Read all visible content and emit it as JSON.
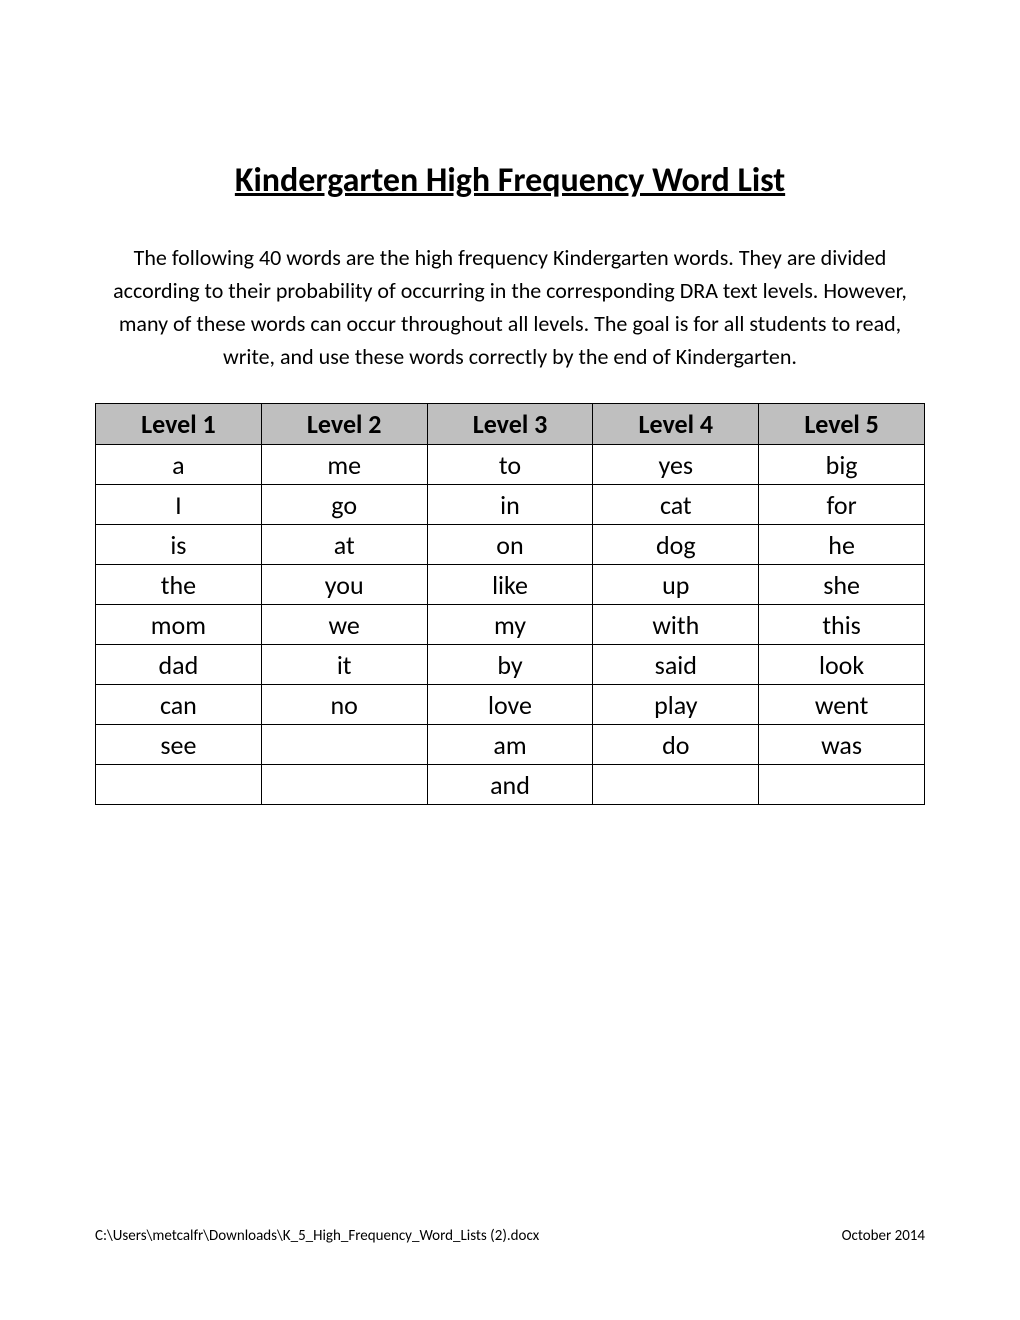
{
  "title": "Kindergarten High Frequency Word List",
  "intro": "The following 40 words are the high frequency Kindergarten words. They are divided according to their probability of occurring in the corresponding DRA text levels. However, many of these words can occur throughout all levels. The goal is for all students to read, write, and use these words correctly by the end of Kindergarten.",
  "table": {
    "columns": [
      "Level 1",
      "Level 2",
      "Level 3",
      "Level 4",
      "Level 5"
    ],
    "rows": [
      [
        "a",
        "me",
        "to",
        "yes",
        "big"
      ],
      [
        "I",
        "go",
        "in",
        "cat",
        "for"
      ],
      [
        "is",
        "at",
        "on",
        "dog",
        "he"
      ],
      [
        "the",
        "you",
        "like",
        "up",
        "she"
      ],
      [
        "mom",
        "we",
        "my",
        "with",
        "this"
      ],
      [
        "dad",
        "it",
        "by",
        "said",
        "look"
      ],
      [
        "can",
        "no",
        "love",
        "play",
        "went"
      ],
      [
        "see",
        "",
        "am",
        "do",
        "was"
      ],
      [
        "",
        "",
        "and",
        "",
        ""
      ]
    ],
    "header_bg": "#bfbfbf",
    "border_color": "#000000",
    "cell_fontsize": 26,
    "header_fontsize": 26
  },
  "footer": {
    "left": "C:\\Users\\metcalfr\\Downloads\\K_5_High_Frequency_Word_Lists (2).docx",
    "right": "October 2014"
  },
  "styling": {
    "page_bg": "#ffffff",
    "text_color": "#000000",
    "title_fontsize": 34,
    "intro_fontsize": 22,
    "footer_fontsize": 15
  }
}
